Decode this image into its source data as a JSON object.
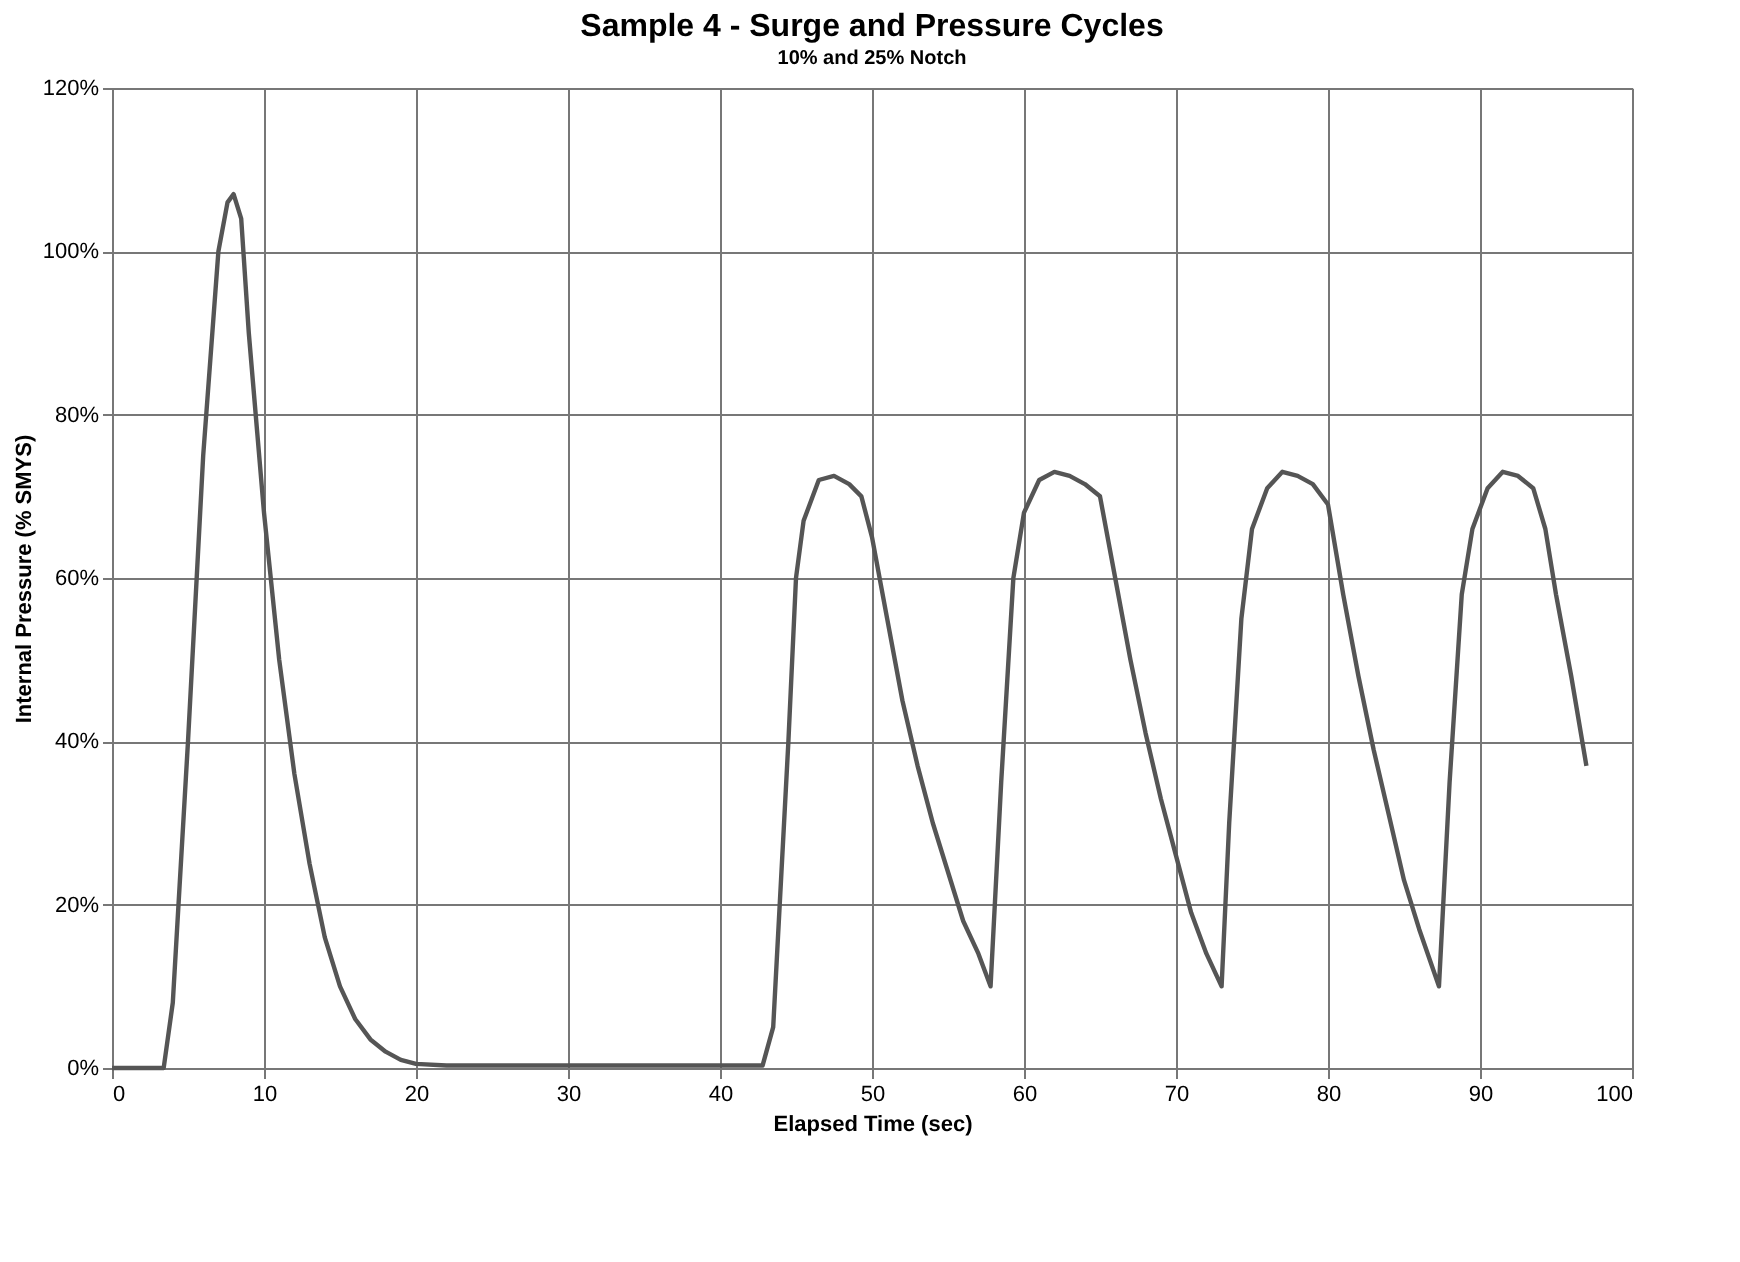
{
  "chart_data": {
    "type": "line",
    "title": "Sample 4 - Surge and Pressure Cycles",
    "subtitle": "10% and 25% Notch",
    "xlabel": "Elapsed Time (sec)",
    "ylabel": "Internal Pressure (% SMYS)",
    "x": [
      0,
      3.4,
      4,
      5,
      6,
      7,
      7.6,
      8,
      8.5,
      9,
      10,
      11,
      12,
      13,
      14,
      15,
      16,
      17,
      18,
      19,
      20,
      22,
      30,
      40,
      42.8,
      43.5,
      44.5,
      45,
      45.5,
      46.5,
      47.5,
      48.5,
      49.3,
      50,
      51,
      52,
      53,
      54,
      55,
      56,
      57,
      57.8,
      58.5,
      59.3,
      60,
      61,
      62,
      63,
      64,
      65,
      66,
      67,
      68,
      69,
      70,
      71,
      72,
      73,
      73.5,
      74.3,
      75,
      76,
      77,
      78,
      79,
      80,
      81,
      82,
      83,
      84,
      85,
      86,
      87.3,
      88,
      88.8,
      89.5,
      90.5,
      91.5,
      92.5,
      93.5,
      94.3,
      95,
      96,
      97
    ],
    "series": [
      {
        "color": "#555555",
        "values": [
          0,
          0,
          8,
          40,
          75,
          100,
          106,
          107,
          104,
          90,
          68,
          50,
          36,
          25,
          16,
          10,
          6,
          3.5,
          2,
          1,
          0.5,
          0.3,
          0.3,
          0.3,
          0.3,
          5,
          40,
          60,
          67,
          72,
          72.5,
          71.5,
          70,
          65,
          55,
          45,
          37,
          30,
          24,
          18,
          14,
          10,
          35,
          60,
          68,
          72,
          73,
          72.5,
          71.5,
          70,
          60,
          50,
          41,
          33,
          26,
          19,
          14,
          10,
          30,
          55,
          66,
          71,
          73,
          72.5,
          71.5,
          69,
          58,
          48,
          39,
          31,
          23,
          17,
          10,
          35,
          58,
          66,
          71,
          73,
          72.5,
          71,
          66,
          58,
          48,
          37
        ]
      }
    ],
    "xlim": [
      0,
      100
    ],
    "xticks": [
      0,
      10,
      20,
      30,
      40,
      50,
      60,
      70,
      80,
      90,
      100
    ],
    "ylim": [
      0,
      120
    ],
    "yticks": [
      {
        "value": 0,
        "label": "0%"
      },
      {
        "value": 20,
        "label": "20%"
      },
      {
        "value": 40,
        "label": "40%"
      },
      {
        "value": 60,
        "label": "60%"
      },
      {
        "value": 80,
        "label": "80%"
      },
      {
        "value": 100,
        "label": "100%"
      },
      {
        "value": 120,
        "label": "120%"
      }
    ],
    "grid": true,
    "legend": false,
    "marker": "none",
    "line_style": "solid"
  }
}
